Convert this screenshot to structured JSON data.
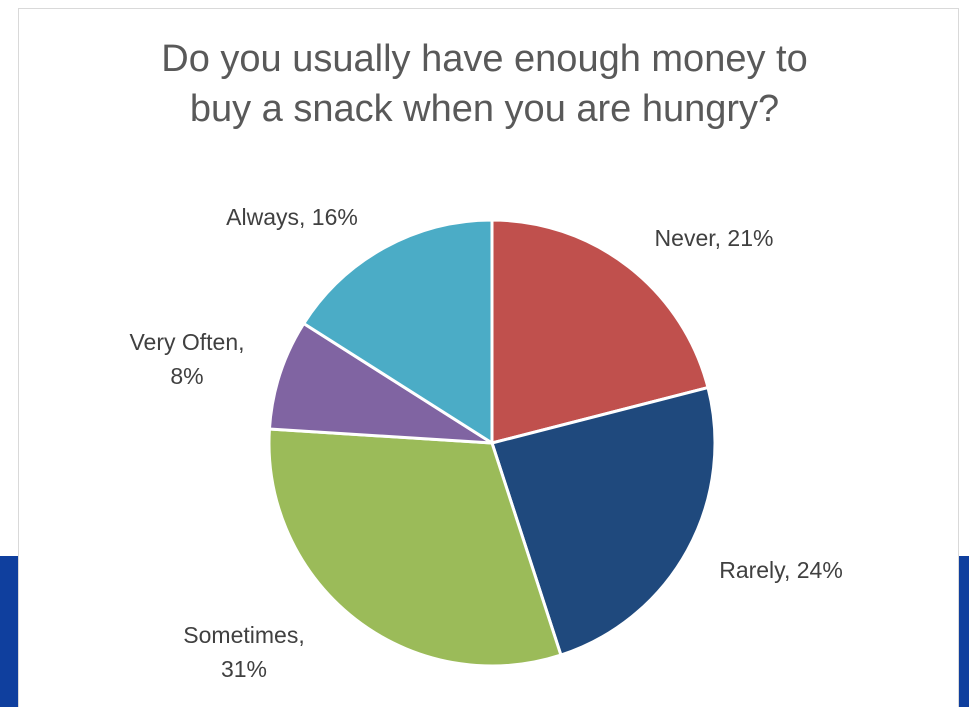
{
  "chart_data": {
    "type": "pie",
    "title_lines": [
      "Do you usually have enough money to",
      "buy a snack when you are hungry?"
    ],
    "slices": [
      {
        "category": "Never",
        "value": 21,
        "color": "#c0504d",
        "label_lines": [
          "Never, 21%"
        ]
      },
      {
        "category": "Rarely",
        "value": 24,
        "color": "#1f497d",
        "label_lines": [
          "Rarely, 24%"
        ]
      },
      {
        "category": "Sometimes",
        "value": 31,
        "color": "#9bbb59",
        "label_lines": [
          "Sometimes,",
          "31%"
        ]
      },
      {
        "category": "Very Often",
        "value": 8,
        "color": "#8064a2",
        "label_lines": [
          "Very Often,",
          "8%"
        ]
      },
      {
        "category": "Always",
        "value": 16,
        "color": "#4bacc6",
        "label_lines": [
          "Always, 16%"
        ]
      }
    ],
    "value_unit": "%",
    "start_angle": "12 o'clock",
    "direction": "clockwise",
    "legend": "none"
  }
}
